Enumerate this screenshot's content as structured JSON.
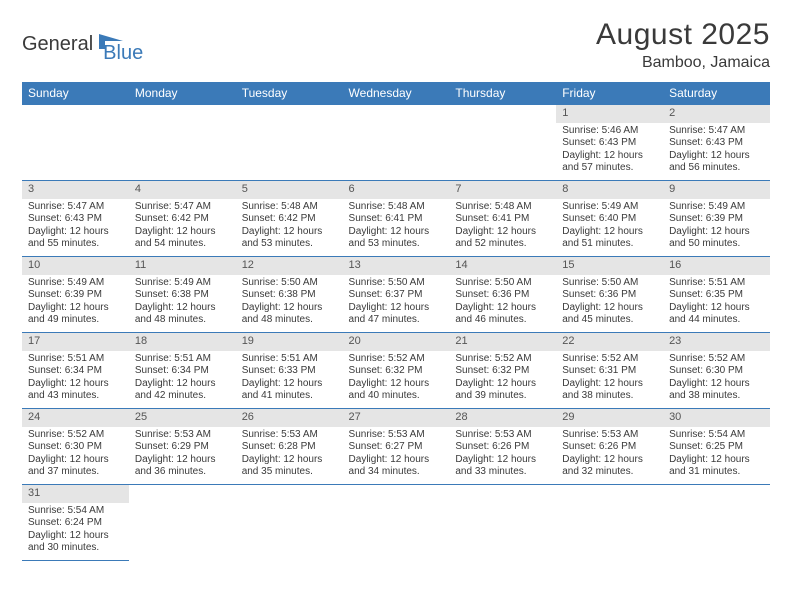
{
  "logo": {
    "text1": "General",
    "text2": "Blue"
  },
  "title": "August 2025",
  "location": "Bamboo, Jamaica",
  "dayHeaders": [
    "Sunday",
    "Monday",
    "Tuesday",
    "Wednesday",
    "Thursday",
    "Friday",
    "Saturday"
  ],
  "style": {
    "headerBg": "#3b7ab8",
    "headerText": "#ffffff",
    "dayNumBg": "#e5e5e5",
    "borderColor": "#3b7ab8",
    "bodyText": "#3a3a3a",
    "logoAccent": "#3b7ab8",
    "fontFamily": "Arial",
    "titleFontSize": 30,
    "headerFontSize": 12,
    "cellFontSize": 10
  },
  "weeks": [
    [
      {
        "num": "",
        "lines": []
      },
      {
        "num": "",
        "lines": []
      },
      {
        "num": "",
        "lines": []
      },
      {
        "num": "",
        "lines": []
      },
      {
        "num": "",
        "lines": []
      },
      {
        "num": "1",
        "lines": [
          "Sunrise: 5:46 AM",
          "Sunset: 6:43 PM",
          "Daylight: 12 hours",
          "and 57 minutes."
        ]
      },
      {
        "num": "2",
        "lines": [
          "Sunrise: 5:47 AM",
          "Sunset: 6:43 PM",
          "Daylight: 12 hours",
          "and 56 minutes."
        ]
      }
    ],
    [
      {
        "num": "3",
        "lines": [
          "Sunrise: 5:47 AM",
          "Sunset: 6:43 PM",
          "Daylight: 12 hours",
          "and 55 minutes."
        ]
      },
      {
        "num": "4",
        "lines": [
          "Sunrise: 5:47 AM",
          "Sunset: 6:42 PM",
          "Daylight: 12 hours",
          "and 54 minutes."
        ]
      },
      {
        "num": "5",
        "lines": [
          "Sunrise: 5:48 AM",
          "Sunset: 6:42 PM",
          "Daylight: 12 hours",
          "and 53 minutes."
        ]
      },
      {
        "num": "6",
        "lines": [
          "Sunrise: 5:48 AM",
          "Sunset: 6:41 PM",
          "Daylight: 12 hours",
          "and 53 minutes."
        ]
      },
      {
        "num": "7",
        "lines": [
          "Sunrise: 5:48 AM",
          "Sunset: 6:41 PM",
          "Daylight: 12 hours",
          "and 52 minutes."
        ]
      },
      {
        "num": "8",
        "lines": [
          "Sunrise: 5:49 AM",
          "Sunset: 6:40 PM",
          "Daylight: 12 hours",
          "and 51 minutes."
        ]
      },
      {
        "num": "9",
        "lines": [
          "Sunrise: 5:49 AM",
          "Sunset: 6:39 PM",
          "Daylight: 12 hours",
          "and 50 minutes."
        ]
      }
    ],
    [
      {
        "num": "10",
        "lines": [
          "Sunrise: 5:49 AM",
          "Sunset: 6:39 PM",
          "Daylight: 12 hours",
          "and 49 minutes."
        ]
      },
      {
        "num": "11",
        "lines": [
          "Sunrise: 5:49 AM",
          "Sunset: 6:38 PM",
          "Daylight: 12 hours",
          "and 48 minutes."
        ]
      },
      {
        "num": "12",
        "lines": [
          "Sunrise: 5:50 AM",
          "Sunset: 6:38 PM",
          "Daylight: 12 hours",
          "and 48 minutes."
        ]
      },
      {
        "num": "13",
        "lines": [
          "Sunrise: 5:50 AM",
          "Sunset: 6:37 PM",
          "Daylight: 12 hours",
          "and 47 minutes."
        ]
      },
      {
        "num": "14",
        "lines": [
          "Sunrise: 5:50 AM",
          "Sunset: 6:36 PM",
          "Daylight: 12 hours",
          "and 46 minutes."
        ]
      },
      {
        "num": "15",
        "lines": [
          "Sunrise: 5:50 AM",
          "Sunset: 6:36 PM",
          "Daylight: 12 hours",
          "and 45 minutes."
        ]
      },
      {
        "num": "16",
        "lines": [
          "Sunrise: 5:51 AM",
          "Sunset: 6:35 PM",
          "Daylight: 12 hours",
          "and 44 minutes."
        ]
      }
    ],
    [
      {
        "num": "17",
        "lines": [
          "Sunrise: 5:51 AM",
          "Sunset: 6:34 PM",
          "Daylight: 12 hours",
          "and 43 minutes."
        ]
      },
      {
        "num": "18",
        "lines": [
          "Sunrise: 5:51 AM",
          "Sunset: 6:34 PM",
          "Daylight: 12 hours",
          "and 42 minutes."
        ]
      },
      {
        "num": "19",
        "lines": [
          "Sunrise: 5:51 AM",
          "Sunset: 6:33 PM",
          "Daylight: 12 hours",
          "and 41 minutes."
        ]
      },
      {
        "num": "20",
        "lines": [
          "Sunrise: 5:52 AM",
          "Sunset: 6:32 PM",
          "Daylight: 12 hours",
          "and 40 minutes."
        ]
      },
      {
        "num": "21",
        "lines": [
          "Sunrise: 5:52 AM",
          "Sunset: 6:32 PM",
          "Daylight: 12 hours",
          "and 39 minutes."
        ]
      },
      {
        "num": "22",
        "lines": [
          "Sunrise: 5:52 AM",
          "Sunset: 6:31 PM",
          "Daylight: 12 hours",
          "and 38 minutes."
        ]
      },
      {
        "num": "23",
        "lines": [
          "Sunrise: 5:52 AM",
          "Sunset: 6:30 PM",
          "Daylight: 12 hours",
          "and 38 minutes."
        ]
      }
    ],
    [
      {
        "num": "24",
        "lines": [
          "Sunrise: 5:52 AM",
          "Sunset: 6:30 PM",
          "Daylight: 12 hours",
          "and 37 minutes."
        ]
      },
      {
        "num": "25",
        "lines": [
          "Sunrise: 5:53 AM",
          "Sunset: 6:29 PM",
          "Daylight: 12 hours",
          "and 36 minutes."
        ]
      },
      {
        "num": "26",
        "lines": [
          "Sunrise: 5:53 AM",
          "Sunset: 6:28 PM",
          "Daylight: 12 hours",
          "and 35 minutes."
        ]
      },
      {
        "num": "27",
        "lines": [
          "Sunrise: 5:53 AM",
          "Sunset: 6:27 PM",
          "Daylight: 12 hours",
          "and 34 minutes."
        ]
      },
      {
        "num": "28",
        "lines": [
          "Sunrise: 5:53 AM",
          "Sunset: 6:26 PM",
          "Daylight: 12 hours",
          "and 33 minutes."
        ]
      },
      {
        "num": "29",
        "lines": [
          "Sunrise: 5:53 AM",
          "Sunset: 6:26 PM",
          "Daylight: 12 hours",
          "and 32 minutes."
        ]
      },
      {
        "num": "30",
        "lines": [
          "Sunrise: 5:54 AM",
          "Sunset: 6:25 PM",
          "Daylight: 12 hours",
          "and 31 minutes."
        ]
      }
    ],
    [
      {
        "num": "31",
        "lines": [
          "Sunrise: 5:54 AM",
          "Sunset: 6:24 PM",
          "Daylight: 12 hours",
          "and 30 minutes."
        ]
      },
      {
        "num": "",
        "lines": []
      },
      {
        "num": "",
        "lines": []
      },
      {
        "num": "",
        "lines": []
      },
      {
        "num": "",
        "lines": []
      },
      {
        "num": "",
        "lines": []
      },
      {
        "num": "",
        "lines": []
      }
    ]
  ]
}
